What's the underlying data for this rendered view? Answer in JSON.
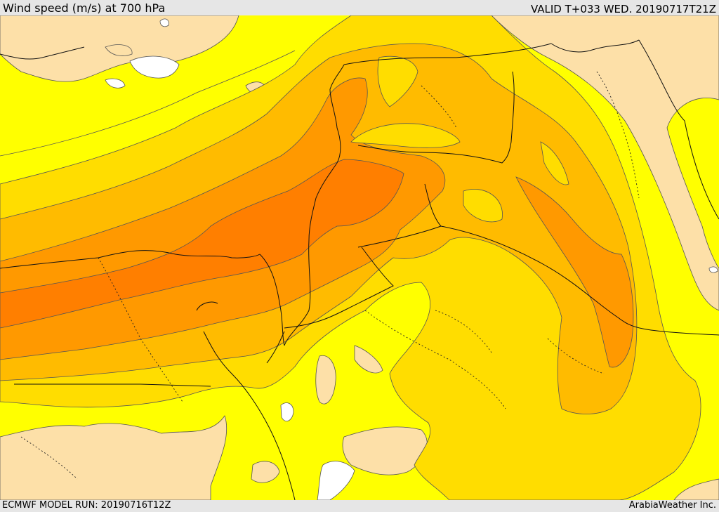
{
  "header": {
    "title": "Wind speed (m/s) at 700 hPa",
    "valid": "VALID T+033 WED. 20190717T21Z"
  },
  "footer": {
    "run": "ECMWF MODEL RUN: 20190716T12Z",
    "credit": "ArabiaWeather Inc."
  },
  "colors": {
    "calm": "#ffffff",
    "light": "#fde0a8",
    "band1": "#ffff00",
    "band2": "#ffdd00",
    "band3": "#ffbb00",
    "band4": "#ff9900",
    "band5": "#ff7f00",
    "contour": "#555555",
    "border": "#111111"
  }
}
